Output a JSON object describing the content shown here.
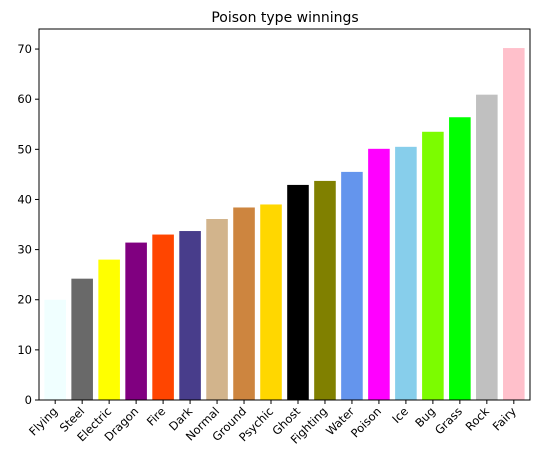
{
  "chart_data": {
    "type": "bar",
    "title": "Poison type winnings",
    "xlabel": "",
    "ylabel": "",
    "ylim": [
      0,
      74
    ],
    "yticks": [
      0,
      10,
      20,
      30,
      40,
      50,
      60,
      70
    ],
    "grid": false,
    "legend": "none",
    "categories": [
      "Flying",
      "Steel",
      "Electric",
      "Dragon",
      "Fire",
      "Dark",
      "Normal",
      "Ground",
      "Psychic",
      "Ghost",
      "Fighting",
      "Water",
      "Poison",
      "Ice",
      "Bug",
      "Grass",
      "Rock",
      "Fairy"
    ],
    "values": [
      20.0,
      24.2,
      28.0,
      31.4,
      33.0,
      33.7,
      36.1,
      38.4,
      39.0,
      42.9,
      43.7,
      45.5,
      50.1,
      50.5,
      53.5,
      56.4,
      60.9,
      70.2
    ],
    "colors": [
      "#f0ffff",
      "#696969",
      "#ffff00",
      "#800080",
      "#ff4500",
      "#483d8b",
      "#d2b48c",
      "#cd853f",
      "#ffd700",
      "#000000",
      "#808000",
      "#6495ed",
      "#ff00ff",
      "#87ceeb",
      "#7cfc00",
      "#00ff00",
      "#c0c0c0",
      "#ffc0cb"
    ]
  }
}
